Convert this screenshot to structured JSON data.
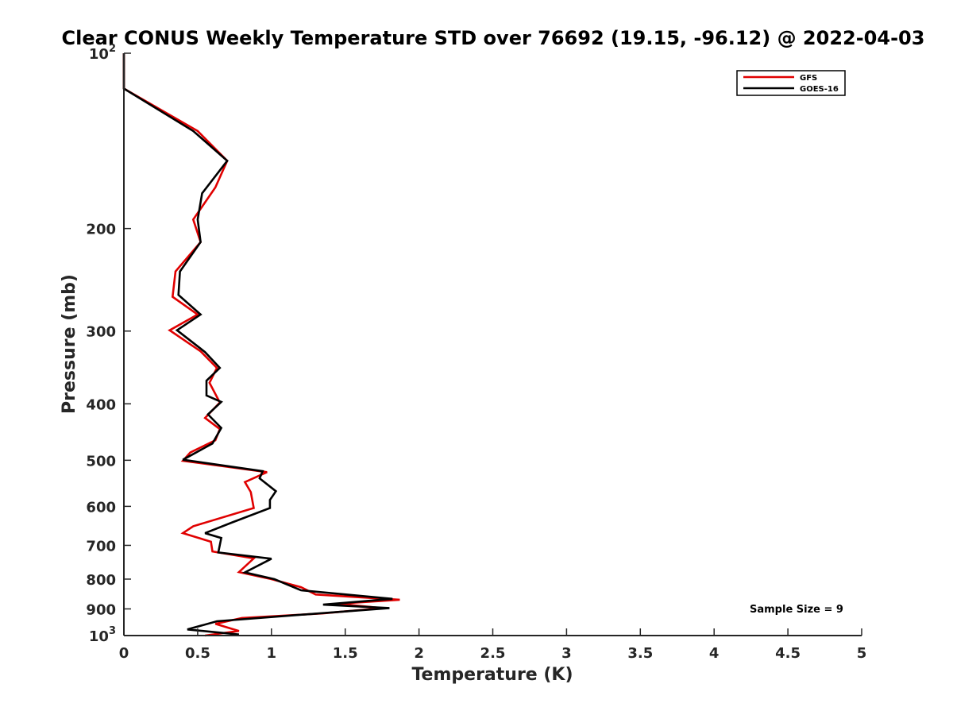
{
  "chart_data": {
    "type": "line",
    "title": "Clear CONUS Weekly Temperature STD over 76692 (19.15, -96.12) @ 2022-04-03",
    "xlabel": "Temperature (K)",
    "ylabel": "Pressure (mb)",
    "xlim": [
      0,
      5
    ],
    "ylim": [
      100,
      1000
    ],
    "y_scale": "log",
    "y_reversed": true,
    "x_ticks": [
      "0",
      "0.5",
      "1",
      "1.5",
      "2",
      "2.5",
      "3",
      "3.5",
      "4",
      "4.5",
      "5"
    ],
    "y_ticks": [
      {
        "value": 100,
        "base": "10",
        "exp": "2"
      },
      {
        "value": 200,
        "label": "200"
      },
      {
        "value": 300,
        "label": "300"
      },
      {
        "value": 400,
        "label": "400"
      },
      {
        "value": 500,
        "label": "500"
      },
      {
        "value": 600,
        "label": "600"
      },
      {
        "value": 700,
        "label": "700"
      },
      {
        "value": 800,
        "label": "800"
      },
      {
        "value": 900,
        "label": "900"
      },
      {
        "value": 1000,
        "base": "10",
        "exp": "3"
      }
    ],
    "grid": false,
    "legend_position": "top-right",
    "annotation": "Sample Size = 9",
    "series": [
      {
        "name": "GFS",
        "color": "#e00000",
        "points": [
          [
            0.0,
            100
          ],
          [
            0.0,
            115
          ],
          [
            0.5,
            136
          ],
          [
            0.7,
            153
          ],
          [
            0.62,
            170
          ],
          [
            0.47,
            193
          ],
          [
            0.52,
            211
          ],
          [
            0.35,
            237
          ],
          [
            0.33,
            262
          ],
          [
            0.5,
            281
          ],
          [
            0.31,
            299
          ],
          [
            0.52,
            325
          ],
          [
            0.63,
            347
          ],
          [
            0.58,
            368
          ],
          [
            0.65,
            398
          ],
          [
            0.55,
            423
          ],
          [
            0.65,
            442
          ],
          [
            0.62,
            462
          ],
          [
            0.45,
            485
          ],
          [
            0.4,
            501
          ],
          [
            0.97,
            524
          ],
          [
            0.82,
            545
          ],
          [
            0.86,
            567
          ],
          [
            0.88,
            604
          ],
          [
            0.47,
            649
          ],
          [
            0.4,
            667
          ],
          [
            0.59,
            690
          ],
          [
            0.6,
            717
          ],
          [
            0.88,
            737
          ],
          [
            0.78,
            778
          ],
          [
            1.0,
            800
          ],
          [
            1.2,
            826
          ],
          [
            1.3,
            850
          ],
          [
            1.87,
            868
          ],
          [
            1.45,
            882
          ],
          [
            1.75,
            897
          ],
          [
            1.35,
            916
          ],
          [
            0.8,
            933
          ],
          [
            0.62,
            955
          ],
          [
            0.78,
            982
          ],
          [
            0.55,
            1000
          ]
        ]
      },
      {
        "name": "GOES-16",
        "color": "#000000",
        "points": [
          [
            0.0,
            100
          ],
          [
            0.0,
            115
          ],
          [
            0.47,
            136
          ],
          [
            0.7,
            153
          ],
          [
            0.53,
            174
          ],
          [
            0.5,
            193
          ],
          [
            0.52,
            211
          ],
          [
            0.38,
            237
          ],
          [
            0.37,
            260
          ],
          [
            0.52,
            281
          ],
          [
            0.36,
            299
          ],
          [
            0.55,
            326
          ],
          [
            0.65,
            347
          ],
          [
            0.56,
            365
          ],
          [
            0.56,
            387
          ],
          [
            0.66,
            397
          ],
          [
            0.57,
            417
          ],
          [
            0.66,
            440
          ],
          [
            0.6,
            468
          ],
          [
            0.4,
            499
          ],
          [
            0.94,
            522
          ],
          [
            0.92,
            537
          ],
          [
            1.03,
            565
          ],
          [
            0.99,
            585
          ],
          [
            0.99,
            604
          ],
          [
            0.73,
            640
          ],
          [
            0.55,
            667
          ],
          [
            0.66,
            680
          ],
          [
            0.64,
            720
          ],
          [
            1.0,
            738
          ],
          [
            0.82,
            779
          ],
          [
            1.02,
            800
          ],
          [
            1.2,
            836
          ],
          [
            1.82,
            865
          ],
          [
            1.35,
            885
          ],
          [
            1.8,
            897
          ],
          [
            1.3,
            917
          ],
          [
            0.63,
            945
          ],
          [
            0.43,
            976
          ],
          [
            0.78,
            996
          ]
        ]
      }
    ]
  }
}
